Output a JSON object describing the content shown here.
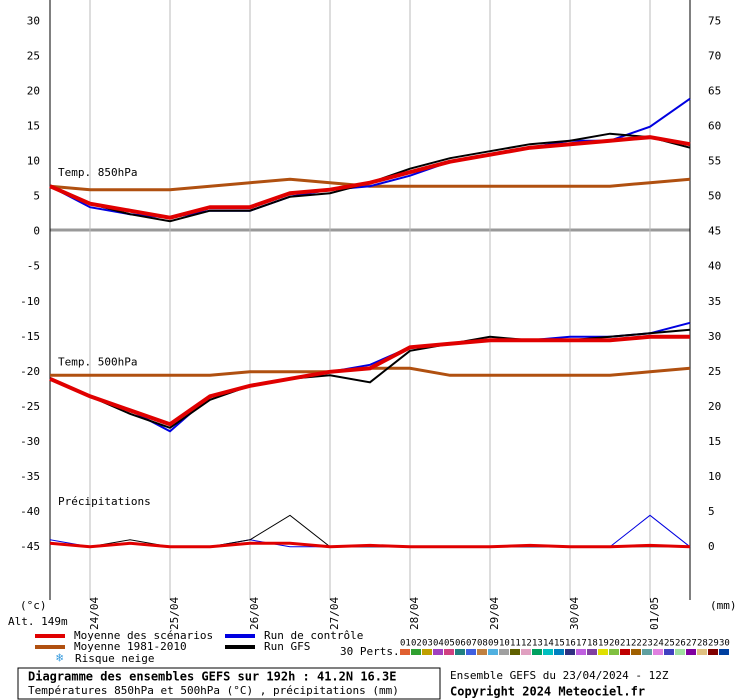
{
  "chart_data": {
    "type": "line",
    "x": [
      0,
      12,
      24,
      36,
      48,
      60,
      72,
      84,
      96,
      108,
      120,
      132,
      144,
      156,
      168,
      180,
      192
    ],
    "xlim": [
      0,
      192
    ],
    "xticks": [
      {
        "value": 12,
        "label": "24/04"
      },
      {
        "value": 36,
        "label": "25/04"
      },
      {
        "value": 60,
        "label": "26/04"
      },
      {
        "value": 84,
        "label": "27/04"
      },
      {
        "value": 108,
        "label": "28/04"
      },
      {
        "value": 132,
        "label": "29/04"
      },
      {
        "value": 156,
        "label": "30/04"
      },
      {
        "value": 180,
        "label": "01/05"
      }
    ],
    "ylim": [
      -52.6,
      33.1
    ],
    "yticks": [
      30,
      25,
      20,
      15,
      10,
      5,
      0,
      -5,
      -10,
      -15,
      -20,
      -25,
      -30,
      -35,
      -40,
      -45
    ],
    "y2lim": [
      -7.6,
      78.1
    ],
    "y2ticks": [
      75,
      70,
      65,
      60,
      55,
      50,
      45,
      40,
      35,
      30,
      25,
      20,
      15,
      10,
      5,
      0
    ],
    "y_unit": "(°c)",
    "y2_unit": "(mm)",
    "altitude": "Alt. 149m",
    "legend": [
      {
        "name": "Moyenne des scénarios",
        "color": "#e00000"
      },
      {
        "name": "Moyenne 1981-2010",
        "color": "#b05010"
      },
      {
        "name": "Run de contrôle",
        "color": "#0000e0"
      },
      {
        "name": "Run GFS",
        "color": "#000000"
      }
    ],
    "snow_label": "Risque neige",
    "perturbations_label": "30 Perts.",
    "perturbations": [
      "01",
      "02",
      "03",
      "04",
      "05",
      "06",
      "07",
      "08",
      "09",
      "10",
      "11",
      "12",
      "13",
      "14",
      "15",
      "16",
      "17",
      "18",
      "19",
      "20",
      "21",
      "22",
      "23",
      "24",
      "25",
      "26",
      "27",
      "28",
      "29",
      "30"
    ],
    "perturbation_colors": [
      "#e06030",
      "#30a030",
      "#c0a000",
      "#a040c0",
      "#d04080",
      "#208080",
      "#4060e0",
      "#c08040",
      "#50b0e0",
      "#a0a0a0",
      "#606000",
      "#e0a0c0",
      "#00a060",
      "#00c0c0",
      "#0080c0",
      "#303080",
      "#c060e0",
      "#8040a0",
      "#e0e000",
      "#80c040",
      "#c00000",
      "#a06000",
      "#60a0a0",
      "#e080e0",
      "#4040c0",
      "#a0e0a0",
      "#8000a0",
      "#e0c080",
      "#800000",
      "#0040a0"
    ],
    "panels": [
      {
        "label": "Temp. 850hPa",
        "axis": "y",
        "series": [
          {
            "values": [
              6.5,
              4,
              3,
              2,
              3.5,
              3.5,
              5.5,
              6,
              7,
              8.5,
              10,
              11,
              12,
              12.5,
              13,
              13.5,
              12.5
            ]
          },
          {
            "values": [
              6.5,
              6,
              6,
              6,
              6.5,
              7,
              7.5,
              7,
              6.5,
              6.5,
              6.5,
              6.5,
              6.5,
              6.5,
              6.5,
              7,
              7.5
            ]
          },
          {
            "values": [
              6.5,
              3.5,
              2.5,
              2,
              3,
              3,
              5,
              6,
              6.5,
              8,
              10,
              11,
              12,
              13,
              13,
              15,
              19
            ]
          },
          {
            "values": [
              6.5,
              4,
              2.5,
              1.5,
              3,
              3,
              5,
              5.5,
              7,
              9,
              10.5,
              11.5,
              12.5,
              13,
              14,
              13.5,
              12
            ]
          }
        ]
      },
      {
        "label": "Temp. 500hPa",
        "axis": "y",
        "series": [
          {
            "values": [
              -21,
              -23.5,
              -25.5,
              -27.5,
              -23.5,
              -22,
              -21,
              -20,
              -19.5,
              -16.5,
              -16,
              -15.5,
              -15.5,
              -15.5,
              -15.5,
              -15,
              -15
            ]
          },
          {
            "values": [
              -20.5,
              -20.5,
              -20.5,
              -20.5,
              -20.5,
              -20,
              -20,
              -20,
              -19.5,
              -19.5,
              -20.5,
              -20.5,
              -20.5,
              -20.5,
              -20.5,
              -20,
              -19.5
            ]
          },
          {
            "values": [
              -21,
              -23.5,
              -25.5,
              -28.5,
              -23.5,
              -22,
              -21,
              -20,
              -19,
              -16.5,
              -16,
              -15.5,
              -15.5,
              -15,
              -15,
              -14.5,
              -13
            ]
          },
          {
            "values": [
              -21,
              -23.5,
              -26,
              -28,
              -24,
              -22,
              -21,
              -20.5,
              -21.5,
              -17,
              -16,
              -15,
              -15.5,
              -15.5,
              -15,
              -14.5,
              -14
            ]
          }
        ]
      },
      {
        "label": "Précipitations",
        "axis": "y2",
        "series": [
          {
            "values": [
              0.5,
              0,
              0.5,
              0,
              0,
              0.5,
              0.5,
              0,
              0.2,
              0,
              0,
              0,
              0.2,
              0,
              0,
              0.2,
              0
            ]
          },
          {
            "values": [
              0,
              0,
              0,
              0,
              0,
              0,
              0,
              0,
              0,
              0,
              0,
              0,
              0,
              0,
              0,
              0,
              0
            ]
          },
          {
            "values": [
              1,
              0,
              0.5,
              0,
              0,
              1,
              0,
              0,
              0,
              0,
              0,
              0,
              0,
              0,
              0,
              4.5,
              0
            ]
          },
          {
            "values": [
              0.5,
              0,
              1,
              0,
              0,
              1,
              4.5,
              0,
              0,
              0,
              0,
              0,
              0,
              0,
              0,
              0,
              0
            ]
          }
        ]
      }
    ],
    "footer": {
      "title": "Diagramme des ensembles GEFS sur 192h : 41.2N 16.3E",
      "subtitle": "Températures 850hPa et 500hPa (°C) , précipitations (mm)",
      "run": "Ensemble GEFS du 23/04/2024 - 12Z",
      "copyright": "Copyright 2024 Meteociel.fr"
    }
  }
}
